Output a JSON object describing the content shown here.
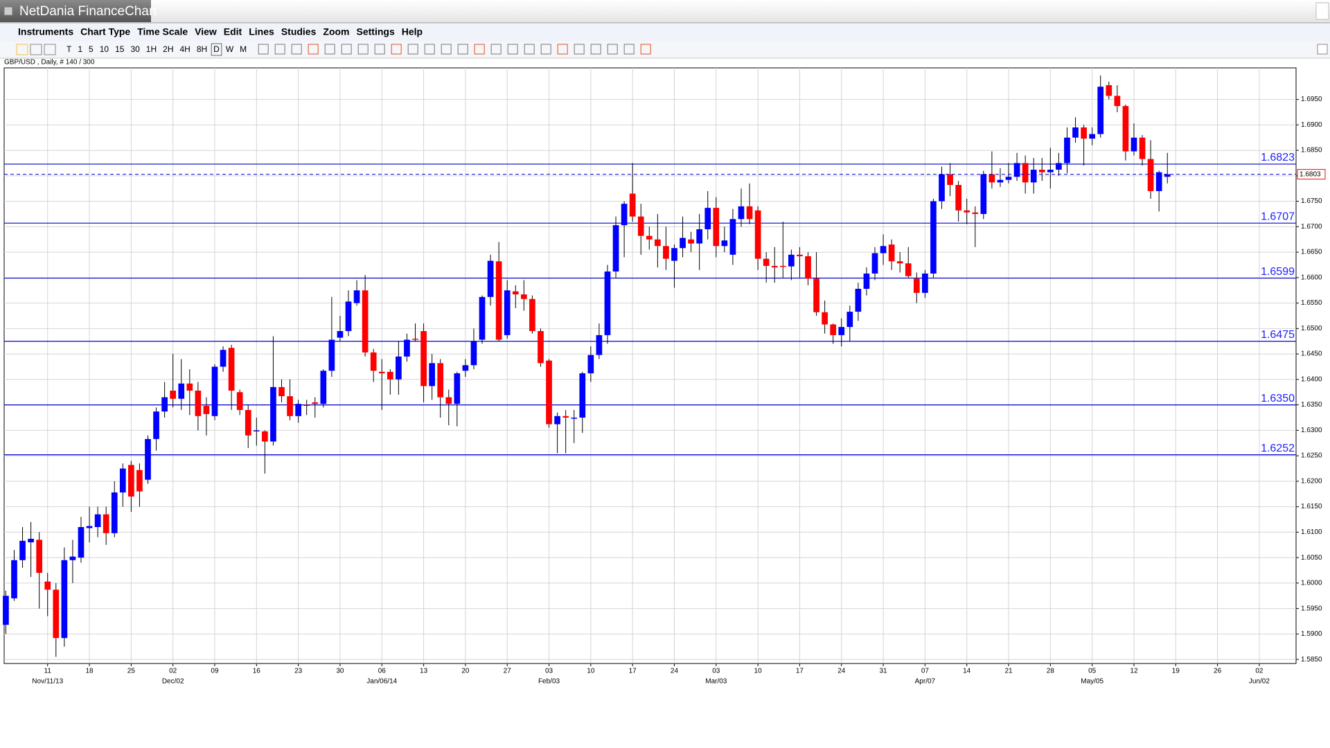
{
  "window": {
    "title": "NetDania FinanceChart",
    "menu": [
      "Instruments",
      "Chart Type",
      "Time Scale",
      "View",
      "Edit",
      "Lines",
      "Studies",
      "Zoom",
      "Settings",
      "Help"
    ],
    "timeframes": [
      "T",
      "1",
      "5",
      "10",
      "15",
      "30",
      "1H",
      "2H",
      "4H",
      "8H",
      "D",
      "W",
      "M"
    ]
  },
  "chart_data": {
    "type": "candlestick",
    "subtitle": "GBP/USD , Daily, # 140 / 300",
    "up_color": "#0000ff",
    "down_color": "#ff0000",
    "xlim": [
      -0.2,
      154.4
    ],
    "ylim": [
      1.5842,
      1.7012
    ],
    "grid": true,
    "yticks": [
      {
        "value": 1.585,
        "label": "1.5850"
      },
      {
        "value": 1.59,
        "label": "1.5900"
      },
      {
        "value": 1.595,
        "label": "1.5950"
      },
      {
        "value": 1.6,
        "label": "1.6000"
      },
      {
        "value": 1.605,
        "label": "1.6050"
      },
      {
        "value": 1.61,
        "label": "1.6100"
      },
      {
        "value": 1.615,
        "label": "1.6150"
      },
      {
        "value": 1.62,
        "label": "1.6200"
      },
      {
        "value": 1.625,
        "label": "1.6250"
      },
      {
        "value": 1.63,
        "label": "1.6300"
      },
      {
        "value": 1.635,
        "label": "1.6350"
      },
      {
        "value": 1.64,
        "label": "1.6400"
      },
      {
        "value": 1.645,
        "label": "1.6450"
      },
      {
        "value": 1.65,
        "label": "1.6500"
      },
      {
        "value": 1.655,
        "label": "1.6550"
      },
      {
        "value": 1.66,
        "label": "1.6600"
      },
      {
        "value": 1.665,
        "label": "1.6650"
      },
      {
        "value": 1.67,
        "label": "1.6700"
      },
      {
        "value": 1.675,
        "label": "1.6750"
      },
      {
        "value": 1.68,
        "label": "1.6800"
      },
      {
        "value": 1.685,
        "label": "1.6850"
      },
      {
        "value": 1.69,
        "label": "1.6900"
      },
      {
        "value": 1.695,
        "label": "1.6950"
      }
    ],
    "xticks": [
      {
        "value": 5,
        "label": "11"
      },
      {
        "value": 10,
        "label": "18"
      },
      {
        "value": 15,
        "label": "25"
      },
      {
        "value": 20,
        "label": "02"
      },
      {
        "value": 25,
        "label": "09"
      },
      {
        "value": 30,
        "label": "16"
      },
      {
        "value": 35,
        "label": "23"
      },
      {
        "value": 40,
        "label": "30"
      },
      {
        "value": 45,
        "label": "06"
      },
      {
        "value": 50,
        "label": "13"
      },
      {
        "value": 55,
        "label": "20"
      },
      {
        "value": 60,
        "label": "27"
      },
      {
        "value": 65,
        "label": "03"
      },
      {
        "value": 70,
        "label": "10"
      },
      {
        "value": 75,
        "label": "17"
      },
      {
        "value": 80,
        "label": "24"
      },
      {
        "value": 85,
        "label": "03"
      },
      {
        "value": 90,
        "label": "10"
      },
      {
        "value": 95,
        "label": "17"
      },
      {
        "value": 100,
        "label": "24"
      },
      {
        "value": 105,
        "label": "31"
      },
      {
        "value": 110,
        "label": "07"
      },
      {
        "value": 115,
        "label": "14"
      },
      {
        "value": 120,
        "label": "21"
      },
      {
        "value": 125,
        "label": "28"
      },
      {
        "value": 130,
        "label": "05"
      },
      {
        "value": 135,
        "label": "12"
      },
      {
        "value": 140,
        "label": "19"
      },
      {
        "value": 145,
        "label": "26"
      },
      {
        "value": 150,
        "label": "02"
      }
    ],
    "xticks_major": [
      {
        "value": 5,
        "label": "Nov/11/13"
      },
      {
        "value": 20,
        "label": "Dec/02"
      },
      {
        "value": 45,
        "label": "Jan/06/14"
      },
      {
        "value": 65,
        "label": "Feb/03"
      },
      {
        "value": 85,
        "label": "Mar/03"
      },
      {
        "value": 110,
        "label": "Apr/07"
      },
      {
        "value": 130,
        "label": "May/05"
      },
      {
        "value": 150,
        "label": "Jun/02"
      }
    ],
    "hlines": [
      1.6823,
      1.6707,
      1.6599,
      1.6475,
      1.635,
      1.6252
    ],
    "hline_labels": [
      "1.6823",
      "1.6707",
      "1.6599",
      "1.6475",
      "1.6350",
      "1.6252"
    ],
    "last_price": 1.6803,
    "open": [
      1.5918,
      1.597,
      1.6045,
      1.608,
      1.6085,
      1.6003,
      1.5987,
      1.5892,
      1.6045,
      1.605,
      1.6108,
      1.611,
      1.6135,
      1.6098,
      1.6178,
      1.6232,
      1.6222,
      1.6203,
      1.6283,
      1.6337,
      1.6378,
      1.6362,
      1.6392,
      1.6378,
      1.6348,
      1.6328,
      1.6425,
      1.6462,
      1.6375,
      1.634,
      1.63,
      1.6298,
      1.6278,
      1.6385,
      1.6367,
      1.6328,
      1.635,
      1.6355,
      1.6352,
      1.6417,
      1.6482,
      1.6495,
      1.655,
      1.6575,
      1.6453,
      1.6415,
      1.6415,
      1.64,
      1.6445,
      1.648,
      1.6495,
      1.6387,
      1.6432,
      1.6365,
      1.6352,
      1.6417,
      1.6428,
      1.6478,
      1.6562,
      1.6632,
      1.6487,
      1.6573,
      1.6567,
      1.6558,
      1.6495,
      1.6437,
      1.6312,
      1.6328,
      1.6325,
      1.6325,
      1.6412,
      1.6448,
      1.6487,
      1.6612,
      1.6703,
      1.6765,
      1.672,
      1.6682,
      1.6675,
      1.6662,
      1.6633,
      1.6658,
      1.6675,
      1.6667,
      1.6695,
      1.6737,
      1.6662,
      1.6645,
      1.6715,
      1.674,
      1.6732,
      1.6637,
      1.6623,
      1.6623,
      1.6622,
      1.6645,
      1.6642,
      1.6598,
      1.6532,
      1.6508,
      1.6487,
      1.6503,
      1.6533,
      1.6578,
      1.6608,
      1.6648,
      1.6665,
      1.6632,
      1.6628,
      1.6598,
      1.657,
      1.6608,
      1.675,
      1.6803,
      1.6782,
      1.6732,
      1.6728,
      1.6725,
      1.6803,
      1.6787,
      1.6792,
      1.6798,
      1.6825,
      1.6787,
      1.6812,
      1.6807,
      1.6812,
      1.6825,
      1.6875,
      1.6895,
      1.6873,
      1.6882,
      1.6978,
      1.6957,
      1.6937,
      1.6848,
      1.6875,
      1.6833,
      1.677,
      1.6798
    ],
    "high": [
      1.5985,
      1.6065,
      1.611,
      1.612,
      1.61,
      1.602,
      1.6,
      1.607,
      1.6085,
      1.613,
      1.615,
      1.615,
      1.615,
      1.62,
      1.6235,
      1.624,
      1.6235,
      1.629,
      1.6345,
      1.6395,
      1.645,
      1.644,
      1.642,
      1.6395,
      1.6365,
      1.643,
      1.6465,
      1.6468,
      1.638,
      1.635,
      1.6325,
      1.63,
      1.6485,
      1.64,
      1.64,
      1.636,
      1.636,
      1.6365,
      1.642,
      1.6562,
      1.6525,
      1.6575,
      1.6595,
      1.6605,
      1.646,
      1.644,
      1.642,
      1.6475,
      1.649,
      1.651,
      1.651,
      1.645,
      1.644,
      1.638,
      1.6415,
      1.644,
      1.65,
      1.6565,
      1.6645,
      1.667,
      1.6595,
      1.6585,
      1.6595,
      1.6565,
      1.65,
      1.644,
      1.6335,
      1.634,
      1.634,
      1.6415,
      1.6465,
      1.651,
      1.6625,
      1.672,
      1.675,
      1.6825,
      1.6745,
      1.67,
      1.6725,
      1.67,
      1.6665,
      1.672,
      1.669,
      1.6725,
      1.677,
      1.6758,
      1.67,
      1.6735,
      1.6775,
      1.6785,
      1.674,
      1.665,
      1.666,
      1.671,
      1.6655,
      1.666,
      1.665,
      1.665,
      1.6555,
      1.651,
      1.652,
      1.6545,
      1.659,
      1.662,
      1.666,
      1.6685,
      1.6675,
      1.665,
      1.666,
      1.661,
      1.6615,
      1.6755,
      1.6818,
      1.6825,
      1.679,
      1.6755,
      1.674,
      1.681,
      1.6848,
      1.6815,
      1.6825,
      1.6845,
      1.684,
      1.6835,
      1.6835,
      1.6855,
      1.6845,
      1.6895,
      1.6915,
      1.69,
      1.6895,
      1.6997,
      1.6985,
      1.6978,
      1.694,
      1.6903,
      1.688,
      1.687,
      1.681,
      1.6845
    ],
    "low": [
      1.59,
      1.5965,
      1.603,
      1.6012,
      1.595,
      1.5935,
      1.5855,
      1.5875,
      1.6,
      1.604,
      1.608,
      1.609,
      1.6075,
      1.609,
      1.615,
      1.614,
      1.615,
      1.6195,
      1.626,
      1.6325,
      1.6345,
      1.634,
      1.633,
      1.63,
      1.629,
      1.632,
      1.6415,
      1.634,
      1.633,
      1.6265,
      1.627,
      1.6215,
      1.627,
      1.6355,
      1.632,
      1.6315,
      1.633,
      1.6325,
      1.6345,
      1.6405,
      1.6475,
      1.6485,
      1.6545,
      1.6445,
      1.6395,
      1.634,
      1.637,
      1.637,
      1.6435,
      1.6475,
      1.6355,
      1.636,
      1.6325,
      1.631,
      1.6308,
      1.6405,
      1.642,
      1.647,
      1.6545,
      1.6475,
      1.648,
      1.654,
      1.6535,
      1.649,
      1.6425,
      1.6305,
      1.6255,
      1.6255,
      1.6275,
      1.6295,
      1.6395,
      1.644,
      1.647,
      1.66,
      1.664,
      1.671,
      1.6645,
      1.6655,
      1.662,
      1.6615,
      1.658,
      1.664,
      1.665,
      1.6615,
      1.6675,
      1.664,
      1.665,
      1.6625,
      1.67,
      1.6705,
      1.6615,
      1.659,
      1.659,
      1.66,
      1.6595,
      1.66,
      1.6585,
      1.6525,
      1.649,
      1.647,
      1.6465,
      1.6475,
      1.6515,
      1.6565,
      1.6595,
      1.6625,
      1.6615,
      1.661,
      1.66,
      1.655,
      1.656,
      1.66,
      1.6735,
      1.676,
      1.671,
      1.6705,
      1.666,
      1.6715,
      1.6775,
      1.6778,
      1.6785,
      1.679,
      1.6765,
      1.6765,
      1.679,
      1.6775,
      1.68,
      1.6805,
      1.6865,
      1.682,
      1.686,
      1.6875,
      1.695,
      1.6925,
      1.683,
      1.684,
      1.682,
      1.6755,
      1.673,
      1.6785
    ],
    "close": [
      1.5975,
      1.6045,
      1.6083,
      1.6087,
      1.602,
      1.5987,
      1.5892,
      1.6045,
      1.6052,
      1.611,
      1.6112,
      1.6135,
      1.6098,
      1.6178,
      1.6225,
      1.617,
      1.618,
      1.6283,
      1.6337,
      1.6365,
      1.6362,
      1.6392,
      1.6378,
      1.6328,
      1.6332,
      1.6425,
      1.6458,
      1.6378,
      1.634,
      1.629,
      1.63,
      1.6278,
      1.6385,
      1.6367,
      1.6328,
      1.6352,
      1.6348,
      1.6352,
      1.6417,
      1.6478,
      1.6495,
      1.6553,
      1.6575,
      1.6453,
      1.6417,
      1.6412,
      1.64,
      1.6445,
      1.6478,
      1.6478,
      1.6387,
      1.6432,
      1.6365,
      1.6352,
      1.6412,
      1.6428,
      1.6475,
      1.6562,
      1.6633,
      1.6478,
      1.6575,
      1.6567,
      1.6558,
      1.6495,
      1.6432,
      1.6312,
      1.6328,
      1.6325,
      1.6325,
      1.6412,
      1.6448,
      1.6487,
      1.6612,
      1.6703,
      1.6745,
      1.672,
      1.6682,
      1.6675,
      1.6662,
      1.6637,
      1.6658,
      1.6678,
      1.6667,
      1.6695,
      1.6737,
      1.6662,
      1.6673,
      1.6715,
      1.674,
      1.6715,
      1.6637,
      1.6623,
      1.662,
      1.6622,
      1.6645,
      1.6642,
      1.6598,
      1.6532,
      1.6508,
      1.6487,
      1.6503,
      1.6533,
      1.6578,
      1.6608,
      1.6648,
      1.6662,
      1.6632,
      1.6628,
      1.6603,
      1.657,
      1.6608,
      1.675,
      1.6803,
      1.6782,
      1.6732,
      1.6728,
      1.6725,
      1.6803,
      1.6787,
      1.6792,
      1.6798,
      1.6825,
      1.6787,
      1.6812,
      1.6807,
      1.6812,
      1.6825,
      1.6875,
      1.6895,
      1.6873,
      1.6882,
      1.6975,
      1.6957,
      1.6937,
      1.6848,
      1.6875,
      1.6833,
      1.677,
      1.6807,
      1.6803
    ]
  }
}
